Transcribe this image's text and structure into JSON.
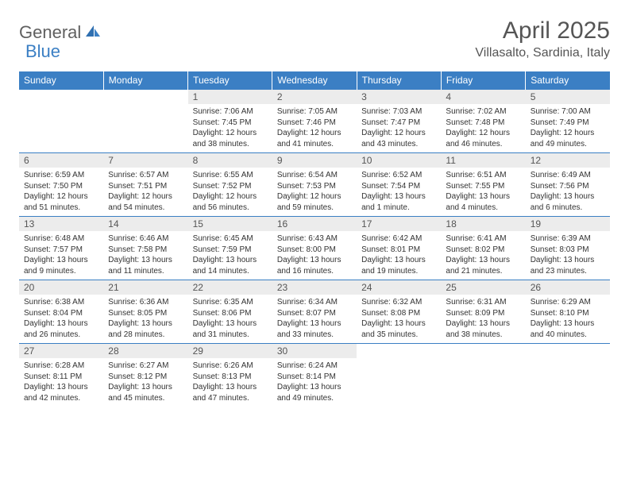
{
  "logo": {
    "text1": "General",
    "text2": "Blue"
  },
  "title": "April 2025",
  "subtitle": "Villasalto, Sardinia, Italy",
  "colors": {
    "header_bg": "#3b7fc4",
    "header_text": "#ffffff",
    "daynum_bg": "#ececec",
    "text": "#555555",
    "border": "#3b7fc4"
  },
  "weekdays": [
    "Sunday",
    "Monday",
    "Tuesday",
    "Wednesday",
    "Thursday",
    "Friday",
    "Saturday"
  ],
  "weeks": [
    [
      null,
      null,
      {
        "n": "1",
        "sr": "7:06 AM",
        "ss": "7:45 PM",
        "dl": "12 hours and 38 minutes."
      },
      {
        "n": "2",
        "sr": "7:05 AM",
        "ss": "7:46 PM",
        "dl": "12 hours and 41 minutes."
      },
      {
        "n": "3",
        "sr": "7:03 AM",
        "ss": "7:47 PM",
        "dl": "12 hours and 43 minutes."
      },
      {
        "n": "4",
        "sr": "7:02 AM",
        "ss": "7:48 PM",
        "dl": "12 hours and 46 minutes."
      },
      {
        "n": "5",
        "sr": "7:00 AM",
        "ss": "7:49 PM",
        "dl": "12 hours and 49 minutes."
      }
    ],
    [
      {
        "n": "6",
        "sr": "6:59 AM",
        "ss": "7:50 PM",
        "dl": "12 hours and 51 minutes."
      },
      {
        "n": "7",
        "sr": "6:57 AM",
        "ss": "7:51 PM",
        "dl": "12 hours and 54 minutes."
      },
      {
        "n": "8",
        "sr": "6:55 AM",
        "ss": "7:52 PM",
        "dl": "12 hours and 56 minutes."
      },
      {
        "n": "9",
        "sr": "6:54 AM",
        "ss": "7:53 PM",
        "dl": "12 hours and 59 minutes."
      },
      {
        "n": "10",
        "sr": "6:52 AM",
        "ss": "7:54 PM",
        "dl": "13 hours and 1 minute."
      },
      {
        "n": "11",
        "sr": "6:51 AM",
        "ss": "7:55 PM",
        "dl": "13 hours and 4 minutes."
      },
      {
        "n": "12",
        "sr": "6:49 AM",
        "ss": "7:56 PM",
        "dl": "13 hours and 6 minutes."
      }
    ],
    [
      {
        "n": "13",
        "sr": "6:48 AM",
        "ss": "7:57 PM",
        "dl": "13 hours and 9 minutes."
      },
      {
        "n": "14",
        "sr": "6:46 AM",
        "ss": "7:58 PM",
        "dl": "13 hours and 11 minutes."
      },
      {
        "n": "15",
        "sr": "6:45 AM",
        "ss": "7:59 PM",
        "dl": "13 hours and 14 minutes."
      },
      {
        "n": "16",
        "sr": "6:43 AM",
        "ss": "8:00 PM",
        "dl": "13 hours and 16 minutes."
      },
      {
        "n": "17",
        "sr": "6:42 AM",
        "ss": "8:01 PM",
        "dl": "13 hours and 19 minutes."
      },
      {
        "n": "18",
        "sr": "6:41 AM",
        "ss": "8:02 PM",
        "dl": "13 hours and 21 minutes."
      },
      {
        "n": "19",
        "sr": "6:39 AM",
        "ss": "8:03 PM",
        "dl": "13 hours and 23 minutes."
      }
    ],
    [
      {
        "n": "20",
        "sr": "6:38 AM",
        "ss": "8:04 PM",
        "dl": "13 hours and 26 minutes."
      },
      {
        "n": "21",
        "sr": "6:36 AM",
        "ss": "8:05 PM",
        "dl": "13 hours and 28 minutes."
      },
      {
        "n": "22",
        "sr": "6:35 AM",
        "ss": "8:06 PM",
        "dl": "13 hours and 31 minutes."
      },
      {
        "n": "23",
        "sr": "6:34 AM",
        "ss": "8:07 PM",
        "dl": "13 hours and 33 minutes."
      },
      {
        "n": "24",
        "sr": "6:32 AM",
        "ss": "8:08 PM",
        "dl": "13 hours and 35 minutes."
      },
      {
        "n": "25",
        "sr": "6:31 AM",
        "ss": "8:09 PM",
        "dl": "13 hours and 38 minutes."
      },
      {
        "n": "26",
        "sr": "6:29 AM",
        "ss": "8:10 PM",
        "dl": "13 hours and 40 minutes."
      }
    ],
    [
      {
        "n": "27",
        "sr": "6:28 AM",
        "ss": "8:11 PM",
        "dl": "13 hours and 42 minutes."
      },
      {
        "n": "28",
        "sr": "6:27 AM",
        "ss": "8:12 PM",
        "dl": "13 hours and 45 minutes."
      },
      {
        "n": "29",
        "sr": "6:26 AM",
        "ss": "8:13 PM",
        "dl": "13 hours and 47 minutes."
      },
      {
        "n": "30",
        "sr": "6:24 AM",
        "ss": "8:14 PM",
        "dl": "13 hours and 49 minutes."
      },
      null,
      null,
      null
    ]
  ],
  "labels": {
    "sunrise": "Sunrise:",
    "sunset": "Sunset:",
    "daylight": "Daylight:"
  }
}
